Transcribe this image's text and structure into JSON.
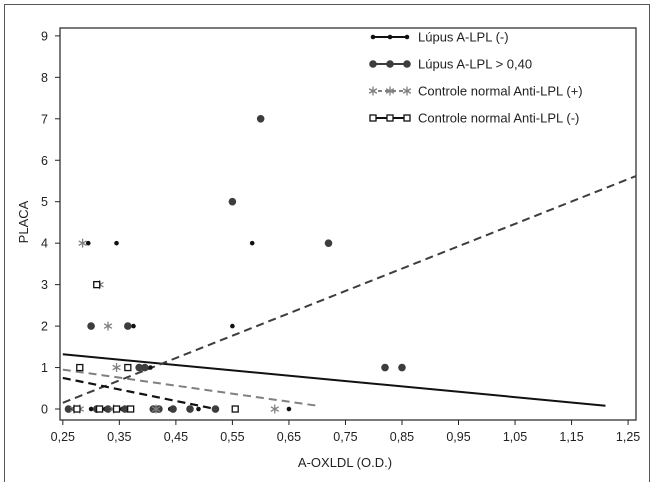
{
  "chart_data": {
    "type": "scatter",
    "title": "",
    "xlabel": "A-OXLDL (O.D.)",
    "ylabel": "PLACA",
    "xlim": [
      0.245,
      1.264
    ],
    "ylim": [
      -0.265,
      9.19
    ],
    "grid": false,
    "legend_position": "top-right",
    "x_ticks": {
      "values": [
        0.25,
        0.35,
        0.45,
        0.55,
        0.65,
        0.75,
        0.85,
        0.95,
        1.05,
        1.15,
        1.25
      ],
      "labels": [
        "0,25",
        "0,35",
        "0,45",
        "0,55",
        "0,65",
        "0,75",
        "0,85",
        "0,95",
        "1,05",
        "1,15",
        "1,25"
      ]
    },
    "y_ticks": {
      "values": [
        0,
        1,
        2,
        3,
        4,
        5,
        6,
        7,
        8,
        9
      ],
      "labels": [
        "0",
        "1",
        "2",
        "3",
        "4",
        "5",
        "6",
        "7",
        "8",
        "9"
      ]
    },
    "series": [
      {
        "name": "Lúpus A-LPL (-)",
        "color": "#111111",
        "marker": "small-dot",
        "fit_line_style": "solid",
        "fit": [
          [
            0.25,
            1.32
          ],
          [
            1.21,
            0.08
          ]
        ],
        "points": [
          [
            0.295,
            4
          ],
          [
            0.345,
            4
          ],
          [
            0.585,
            4
          ],
          [
            0.375,
            2
          ],
          [
            0.55,
            2
          ],
          [
            0.405,
            1
          ],
          [
            0.27,
            0
          ],
          [
            0.3,
            0
          ],
          [
            0.325,
            0
          ],
          [
            0.355,
            0
          ],
          [
            0.44,
            0
          ],
          [
            0.49,
            0
          ],
          [
            0.65,
            0
          ]
        ]
      },
      {
        "name": "Lúpus A-LPL > 0,40",
        "color": "#3d3d3d",
        "marker": "large-dot",
        "fit_line_style": "dashed",
        "fit": [
          [
            0.25,
            0.15
          ],
          [
            1.264,
            5.62
          ]
        ],
        "points": [
          [
            0.6,
            7
          ],
          [
            0.55,
            5
          ],
          [
            0.72,
            4
          ],
          [
            0.3,
            2
          ],
          [
            0.365,
            2
          ],
          [
            0.385,
            1
          ],
          [
            0.395,
            1
          ],
          [
            0.82,
            1
          ],
          [
            0.85,
            1
          ],
          [
            0.26,
            0
          ],
          [
            0.31,
            0
          ],
          [
            0.33,
            0
          ],
          [
            0.36,
            0
          ],
          [
            0.41,
            0
          ],
          [
            0.42,
            0
          ],
          [
            0.445,
            0
          ],
          [
            0.475,
            0
          ],
          [
            0.52,
            0
          ]
        ]
      },
      {
        "name": "Controle normal Anti-LPL (+)",
        "color": "#808080",
        "marker": "asterisk",
        "fit_line_style": "dashed",
        "fit": [
          [
            0.25,
            0.95
          ],
          [
            0.7,
            0.08
          ]
        ],
        "points": [
          [
            0.285,
            4
          ],
          [
            0.315,
            3
          ],
          [
            0.33,
            2
          ],
          [
            0.345,
            1
          ],
          [
            0.27,
            0
          ],
          [
            0.28,
            0
          ],
          [
            0.34,
            0
          ],
          [
            0.415,
            0
          ],
          [
            0.625,
            0
          ]
        ]
      },
      {
        "name": "Controle normal Anti-LPL (-)",
        "color": "#111111",
        "marker": "open-square",
        "fit_line_style": "dashed",
        "fit": [
          [
            0.25,
            0.75
          ],
          [
            0.52,
            0.0
          ]
        ],
        "points": [
          [
            0.31,
            3
          ],
          [
            0.28,
            1
          ],
          [
            0.365,
            1
          ],
          [
            0.275,
            0
          ],
          [
            0.315,
            0
          ],
          [
            0.345,
            0
          ],
          [
            0.37,
            0
          ],
          [
            0.555,
            0
          ]
        ]
      }
    ]
  }
}
